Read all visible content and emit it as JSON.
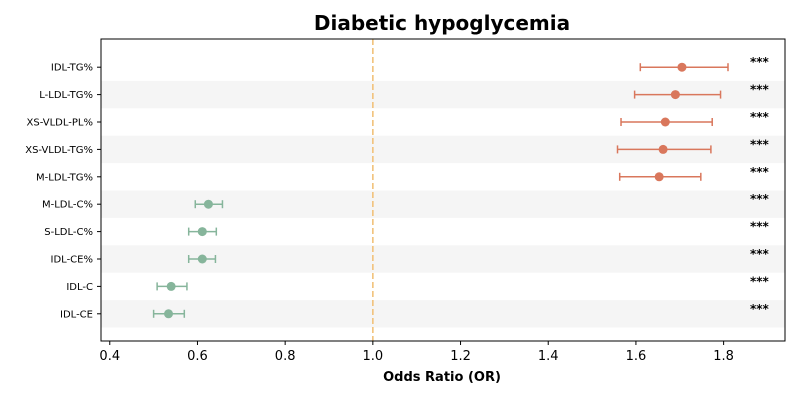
{
  "chart_data": {
    "type": "forest",
    "title": "Diabetic hypoglycemia",
    "xlabel": "Odds Ratio (OR)",
    "ylabel": "",
    "xlim": [
      0.38,
      1.94
    ],
    "xticks": [
      "0.4",
      "0.6",
      "0.8",
      "1.0",
      "1.2",
      "1.4",
      "1.6",
      "1.8"
    ],
    "reference_line": 1.0,
    "grid": false,
    "colors": {
      "risk": "#d9775c",
      "protective": "#86b59b",
      "reference": "#f2c27a",
      "band": "#f5f5f5"
    },
    "rows": [
      {
        "label": "IDL-TG%",
        "or": 1.705,
        "lower": 1.61,
        "upper": 1.81,
        "sig": "***",
        "group": "risk"
      },
      {
        "label": "L-LDL-TG%",
        "or": 1.69,
        "lower": 1.597,
        "upper": 1.793,
        "sig": "***",
        "group": "risk"
      },
      {
        "label": "XS-VLDL-PL%",
        "or": 1.667,
        "lower": 1.566,
        "upper": 1.774,
        "sig": "***",
        "group": "risk"
      },
      {
        "label": "XS-VLDL-TG%",
        "or": 1.662,
        "lower": 1.558,
        "upper": 1.771,
        "sig": "***",
        "group": "risk"
      },
      {
        "label": "M-LDL-TG%",
        "or": 1.653,
        "lower": 1.563,
        "upper": 1.748,
        "sig": "***",
        "group": "risk"
      },
      {
        "label": "M-LDL-C%",
        "or": 0.625,
        "lower": 0.595,
        "upper": 0.657,
        "sig": "***",
        "group": "protective"
      },
      {
        "label": "S-LDL-C%",
        "or": 0.611,
        "lower": 0.58,
        "upper": 0.643,
        "sig": "***",
        "group": "protective"
      },
      {
        "label": "IDL-CE%",
        "or": 0.611,
        "lower": 0.58,
        "upper": 0.641,
        "sig": "***",
        "group": "protective"
      },
      {
        "label": "IDL-C",
        "or": 0.54,
        "lower": 0.508,
        "upper": 0.576,
        "sig": "***",
        "group": "protective"
      },
      {
        "label": "IDL-CE",
        "or": 0.534,
        "lower": 0.5,
        "upper": 0.57,
        "sig": "***",
        "group": "protective"
      }
    ]
  }
}
